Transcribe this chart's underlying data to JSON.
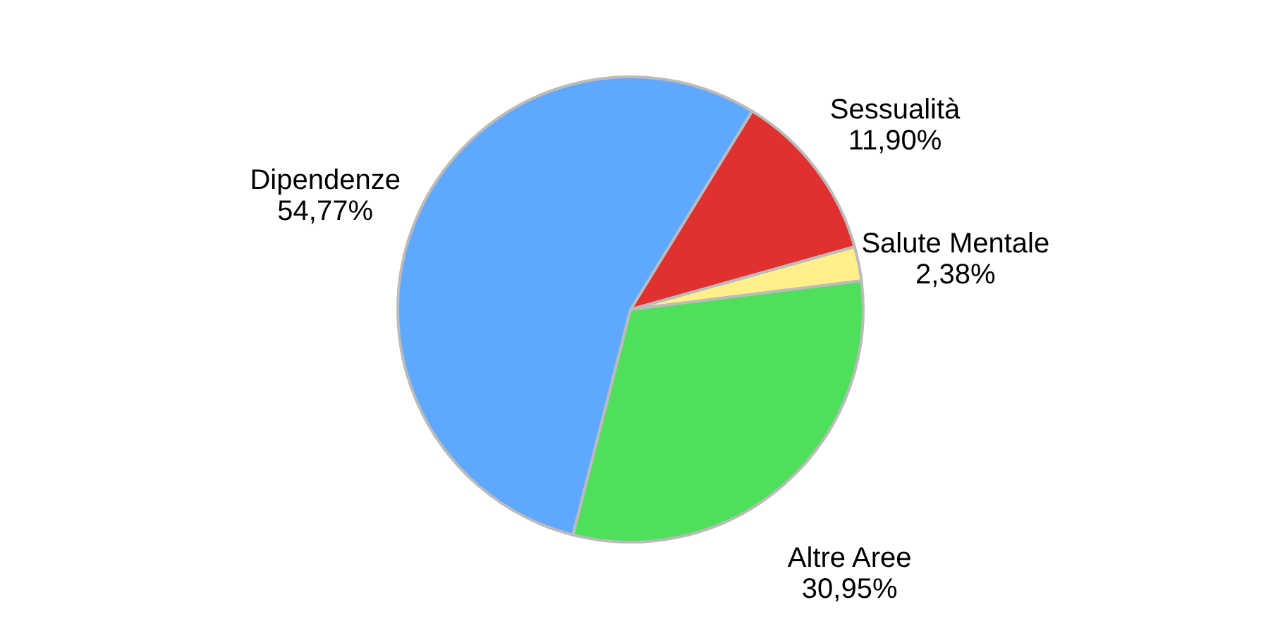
{
  "chart_data": {
    "type": "pie",
    "categories": [
      "Sessualità",
      "Salute Mentale",
      "Altre Aree",
      "Dipendenze"
    ],
    "values": [
      11.9,
      2.38,
      30.95,
      54.77
    ],
    "colors": [
      "#e03030",
      "#fff08a",
      "#4ee05a",
      "#5fa8ff"
    ],
    "value_labels": [
      "11,90%",
      "2,38%",
      "30,95%",
      "54,77%"
    ],
    "legend": false
  }
}
